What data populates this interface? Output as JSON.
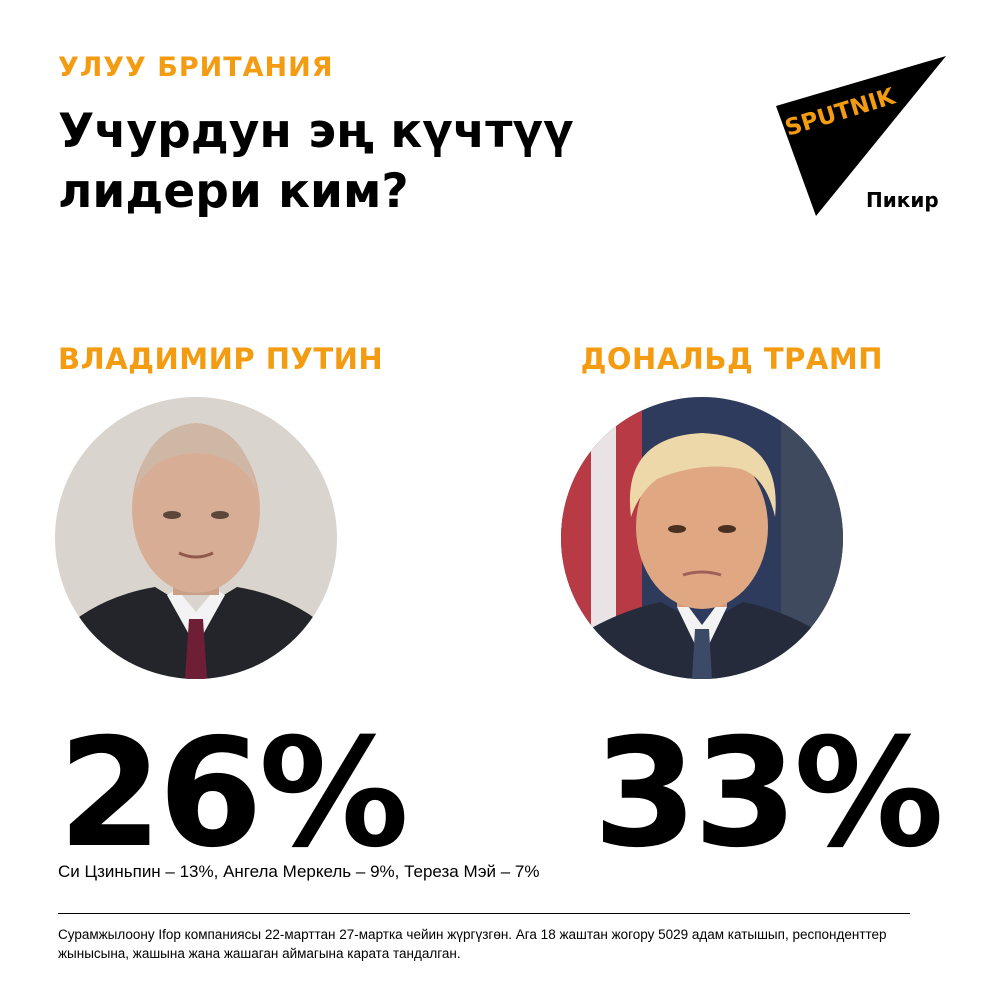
{
  "kicker": "УЛУУ БРИТАНИЯ",
  "headline": "Учурдун эң күчтүү лидери ким?",
  "logo": {
    "brand": "SPUTNIK",
    "subtitle": "Пикир",
    "accent_color": "#f39c12"
  },
  "candidates": [
    {
      "name": "ВЛАДИМИР ПУТИН",
      "percent": "26%",
      "value": 26,
      "photo_icon": "putin-portrait"
    },
    {
      "name": "ДОНАЛЬД ТРАМП",
      "percent": "33%",
      "value": 33,
      "photo_icon": "trump-portrait"
    }
  ],
  "others": "Си Цзиньпин – 13%, Ангела Меркель – 9%, Тереза Мэй – 7%",
  "footnote": "Сурамжылоону Ifop компаниясы 22-марттан 27-мартка чейин жүргүзгөн. Ага 18 жаштан жогору 5029 адам катышып, респонденттер жынысына, жашына жана жашаган аймагына карата тандалган.",
  "colors": {
    "accent": "#f39c12",
    "text": "#000000",
    "background": "#ffffff"
  }
}
